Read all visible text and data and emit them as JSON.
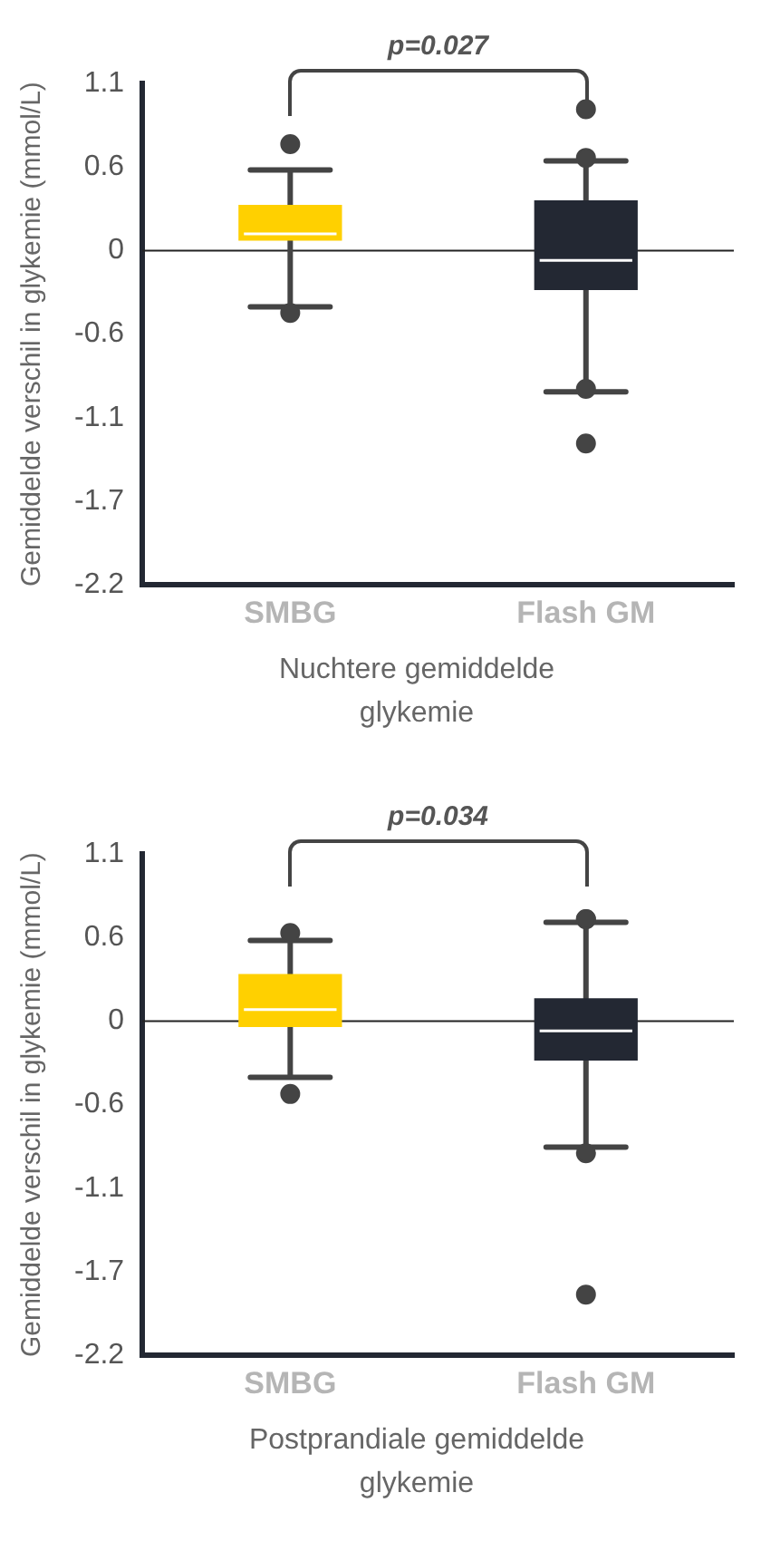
{
  "chart_data": [
    {
      "type": "box",
      "categories": [
        "SMBG",
        "Flash GM"
      ],
      "colors": [
        "#ffd000",
        "#232833"
      ],
      "boxes": [
        {
          "low": -0.37,
          "q1": 0.065,
          "median": 0.11,
          "q3": 0.3,
          "high": 0.53,
          "outliers": [
            0.7,
            -0.41
          ]
        },
        {
          "low": -0.93,
          "q1": -0.26,
          "median": -0.065,
          "q3": 0.33,
          "high": 0.59,
          "outliers": [
            0.93,
            0.61,
            -0.91,
            -1.27
          ]
        }
      ],
      "ylabel": "Gemiddelde verschil in glykemie (mmol/L)",
      "xlabel": "Nuchtere gemiddelde glykemie",
      "ylim": [
        -2.2,
        1.1
      ],
      "yticks": [
        {
          "value": -2.2,
          "label": "-2.2"
        },
        {
          "value": -1.65,
          "label": "-1.7"
        },
        {
          "value": -1.1,
          "label": "-1.1"
        },
        {
          "value": -0.55,
          "label": "-0.6"
        },
        0,
        {
          "value": 0.55,
          "label": "0.6"
        },
        {
          "value": 1.1,
          "label": "1.1"
        }
      ],
      "ref_lines": [
        {
          "axis": "y",
          "value": 0,
          "color": "#222222"
        }
      ],
      "annotations": [
        "p=0.027"
      ],
      "grid": false,
      "legend": false
    },
    {
      "type": "box",
      "categories": [
        "SMBG",
        "Flash GM"
      ],
      "colors": [
        "#ffd000",
        "#232833"
      ],
      "boxes": [
        {
          "low": -0.37,
          "q1": -0.04,
          "median": 0.076,
          "q3": 0.31,
          "high": 0.53,
          "outliers": [
            0.58,
            -0.48
          ]
        },
        {
          "low": -0.83,
          "q1": -0.26,
          "median": -0.065,
          "q3": 0.15,
          "high": 0.65,
          "outliers": [
            0.67,
            0.67,
            -0.87,
            -1.8
          ]
        }
      ],
      "ylabel": "Gemiddelde verschil in glykemie (mmol/L)",
      "xlabel": "Postprandiale gemiddelde glykemie",
      "ylim": [
        -2.2,
        1.1
      ],
      "yticks": [
        {
          "value": -2.2,
          "label": "-2.2"
        },
        {
          "value": -1.65,
          "label": "-1.7"
        },
        {
          "value": -1.1,
          "label": "-1.1"
        },
        {
          "value": -0.55,
          "label": "-0.6"
        },
        0,
        {
          "value": 0.55,
          "label": "0.6"
        },
        {
          "value": 1.1,
          "label": "1.1"
        }
      ],
      "ref_lines": [
        {
          "axis": "y",
          "value": 0,
          "color": "#222222"
        }
      ],
      "annotations": [
        "p=0.034"
      ],
      "grid": false,
      "legend": false
    }
  ]
}
